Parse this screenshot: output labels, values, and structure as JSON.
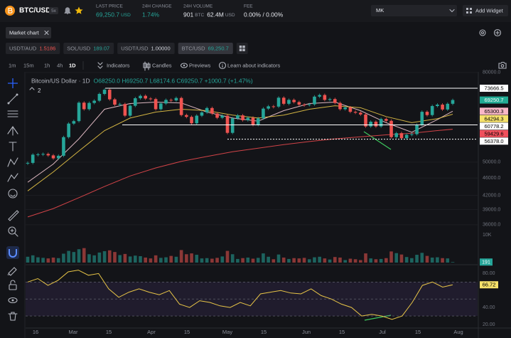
{
  "header": {
    "pair": "BTC/USD",
    "leverage": "5x",
    "stats": [
      {
        "label": "LAST PRICE",
        "value": "69,250.7",
        "unit": "USD"
      },
      {
        "label": "24H CHANGE",
        "value": "1.74%"
      },
      {
        "label": "24H VOLUME",
        "value": "901",
        "unit": "BTC",
        "value2": "62.4M",
        "unit2": "USD"
      },
      {
        "label": "FEE",
        "value": "0.00% / 0.00%"
      }
    ],
    "account": "MK",
    "add_widget": "Add Widget"
  },
  "tab": "Market chart",
  "tickers": [
    {
      "pair": "USDT/AUD",
      "price": "1.5186",
      "color": "#ef5350"
    },
    {
      "pair": "SOL/USD",
      "price": "189.07",
      "color": "#26a69a"
    },
    {
      "pair": "USDT/USD",
      "price": "1.00000",
      "color": "#d1d4dc"
    },
    {
      "pair": "BTC/USD",
      "price": "69,250.7",
      "color": "#26a69a"
    }
  ],
  "intervals": [
    "1m",
    "15m",
    "1h",
    "4h",
    "1D"
  ],
  "active_interval": 4,
  "tools": [
    "Indicators",
    "Candles",
    "Previews",
    "Learn about indicators"
  ],
  "chart": {
    "type": "candlestick",
    "title": "Bitcoin/US Dollar · 1D",
    "ohlc": "O68250.0 H69250.7 L68174.6 C69250.7 +1000.7 (+1.47%)",
    "legend_count": "2",
    "log_scale": true,
    "ylim": [
      35450,
      80570
    ],
    "yticks": [
      {
        "value": 80000,
        "label": "80000.0"
      },
      {
        "value": 50000,
        "label": "50000.0"
      },
      {
        "value": 46000,
        "label": "46000.0"
      },
      {
        "value": 42000,
        "label": "42000.0"
      },
      {
        "value": 39000,
        "label": "39000.0"
      },
      {
        "value": 36000,
        "label": "36000.0"
      }
    ],
    "up_color": "#26a69a",
    "down_color": "#ef5350",
    "closes": [
      49800,
      52000,
      52100,
      52200,
      51800,
      51000,
      51700,
      57000,
      61200,
      62000,
      68300,
      66000,
      68200,
      69000,
      71500,
      73100,
      69500,
      67600,
      67800,
      63800,
      67200,
      69900,
      70800,
      69800,
      69600,
      66000,
      68000,
      69300,
      69100,
      70000,
      64000,
      63400,
      61300,
      63800,
      64900,
      66400,
      64500,
      63100,
      63800,
      58300,
      62900,
      63900,
      62300,
      63100,
      60800,
      62900,
      66200,
      67000,
      66900,
      70100,
      67900,
      69300,
      68500,
      67600,
      67500,
      67700,
      70500,
      71100,
      69300,
      69600,
      68200,
      66000,
      66600,
      65100,
      64800,
      64200,
      60300,
      61800,
      60300,
      62700,
      62100,
      57000,
      58200,
      56700,
      57700,
      57900,
      60800,
      65100,
      64000,
      67100,
      67600,
      65900,
      67900,
      69250.7
    ],
    "moving_averages": [
      {
        "color": "#f3c9d3",
        "values": [
          45000,
          49500,
          56500,
          66000,
          68000,
          68500,
          68200,
          65000,
          63000,
          62000,
          65500,
          68000,
          68500,
          65500,
          61500,
          58500,
          62500,
          65300.3
        ]
      },
      {
        "color": "#e8c547",
        "values": [
          43000,
          47500,
          53000,
          59000,
          63000,
          65000,
          66000,
          65500,
          64000,
          63000,
          64000,
          66000,
          67200,
          66500,
          63500,
          61500,
          62800,
          64294.3
        ]
      },
      {
        "color": "#e5484d",
        "values": [
          37500,
          39200,
          41500,
          44000,
          46500,
          48500,
          50200,
          51500,
          52800,
          53800,
          54800,
          55700,
          56500,
          57100,
          57700,
          58200,
          59000,
          59429.6
        ]
      }
    ],
    "price_labels": [
      {
        "value": 73666.5,
        "label": "73666.5",
        "color": "#ffffff",
        "text_color": "#000000"
      },
      {
        "value": 69250.7,
        "label": "69250.7",
        "color": "#22ab94",
        "text_color": "#ffffff"
      },
      {
        "value": 65300.3,
        "label": "65300.3",
        "color": "#f7b6c6",
        "text_color": "#000000"
      },
      {
        "value": 64294.3,
        "label": "64294.3",
        "color": "#f5e16b",
        "text_color": "#000000"
      },
      {
        "value": 60778.2,
        "label": "60778.2",
        "color": "#ffffff",
        "text_color": "#000000"
      },
      {
        "value": 59429.6,
        "label": "59429.6",
        "color": "#f0505c",
        "text_color": "#000000"
      },
      {
        "value": 56378.0,
        "label": "56378.0",
        "color": "#ffffff",
        "text_color": "#000000"
      }
    ],
    "volume": {
      "ylim": [
        0,
        11000
      ],
      "yticks": [
        {
          "value": 10000,
          "label": "10K"
        }
      ],
      "values": [
        2100,
        2600,
        1900,
        1700,
        1500,
        1800,
        1600,
        3200,
        4200,
        3800,
        4800,
        5200,
        3000,
        2600,
        3600,
        4100,
        4400,
        3800,
        2700,
        3100,
        2200,
        2500,
        2300,
        1800,
        1500,
        2600,
        1700,
        1900,
        2400,
        2100,
        4500,
        3000,
        3300,
        2800,
        1500,
        1600,
        1400,
        1700,
        2200,
        4200,
        3000,
        1300,
        1600,
        1800,
        1400,
        1700,
        3300,
        2100,
        1200,
        2900,
        1800,
        1300,
        1600,
        1500,
        1700,
        1200,
        1900,
        2100,
        1500,
        1100,
        2000,
        1800,
        900,
        1400,
        1200,
        900,
        3300,
        1500,
        1200,
        1300,
        1600,
        4000,
        3400,
        2900,
        2000,
        1600,
        2800,
        3500,
        2400,
        1800,
        1900,
        1600,
        1500,
        191
      ]
    },
    "rsi": {
      "color": "#e8c547",
      "ylim": [
        15,
        87
      ],
      "yticks": [
        {
          "value": 80,
          "label": "80.00"
        },
        {
          "value": 40,
          "label": "40.00"
        },
        {
          "value": 20,
          "label": "20.00"
        }
      ],
      "levels": [
        70,
        50,
        30
      ],
      "values": [
        70,
        74,
        66,
        72,
        82,
        84,
        78,
        80,
        62,
        52,
        58,
        62,
        58,
        55,
        60,
        44,
        40,
        48,
        46,
        42,
        40,
        46,
        42,
        56,
        58,
        60,
        57,
        56,
        62,
        54,
        50,
        44,
        40,
        30,
        32,
        30,
        26,
        30,
        46,
        66,
        70,
        64,
        66.72
      ]
    },
    "x_labels": [
      "16",
      "Mar",
      "15",
      "Apr",
      "15",
      "May",
      "15",
      "Jun",
      "15",
      "Jul",
      "15",
      "Aug"
    ]
  }
}
